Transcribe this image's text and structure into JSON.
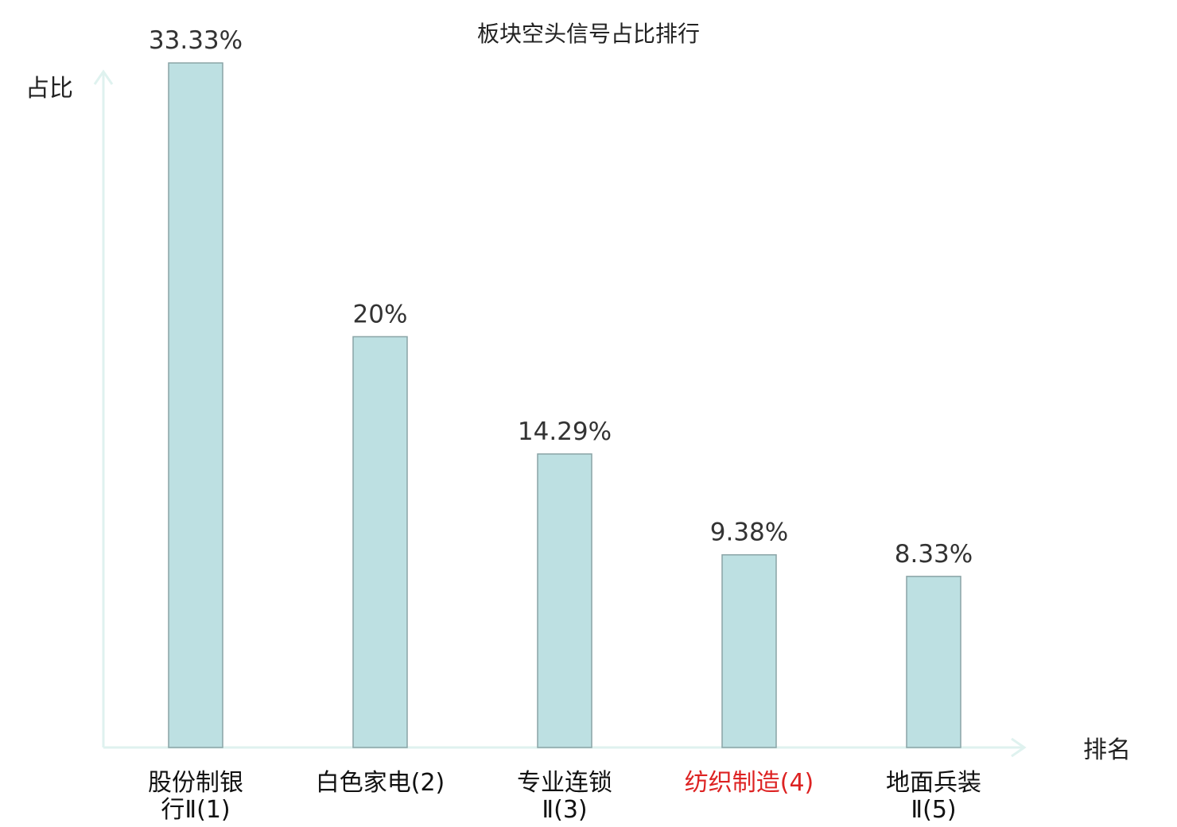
{
  "chart_data": {
    "type": "bar",
    "title": "板块空头信号占比排行",
    "xlabel": "排名",
    "ylabel": "占比",
    "categories": [
      {
        "lines": [
          "股份制银",
          "行Ⅱ(1)"
        ],
        "highlight": false
      },
      {
        "lines": [
          "白色家电(2)"
        ],
        "highlight": false
      },
      {
        "lines": [
          "专业连锁",
          "Ⅱ(3)"
        ],
        "highlight": false
      },
      {
        "lines": [
          "纺织制造(4)"
        ],
        "highlight": true
      },
      {
        "lines": [
          "地面兵装",
          "Ⅱ(5)"
        ],
        "highlight": false
      }
    ],
    "values": [
      33.33,
      20,
      14.29,
      9.38,
      8.33
    ],
    "data_labels": [
      "33.33%",
      "20%",
      "14.29%",
      "9.38%",
      "8.33%"
    ],
    "ylim": [
      0,
      35
    ],
    "grid": false,
    "legend": "none",
    "colors": {
      "bar_fill": "#bde0e2",
      "bar_stroke": "#8aa4a6",
      "axis": "#dff2ef",
      "highlight_text": "#dd2222"
    }
  }
}
